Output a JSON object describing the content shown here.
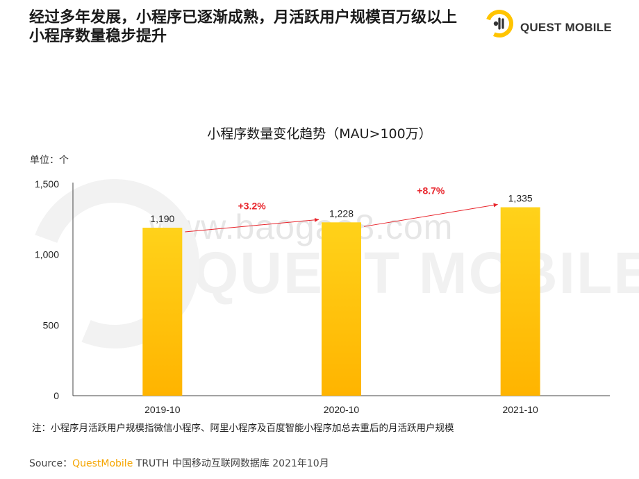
{
  "header": {
    "title_line1": "经过多年发展，小程序已逐渐成熟，月活跃用户规模百万级以上",
    "title_line2": "小程序数量稳步提升",
    "logo_text": "QUEST MOBILE"
  },
  "watermark": {
    "site": "www.baogao8.com",
    "brand": "QUEST MOBILE"
  },
  "chart_data": {
    "type": "bar",
    "title": "小程序数量变化趋势（MAU>100万）",
    "unit_label": "单位：个",
    "categories": [
      "2019-10",
      "2020-10",
      "2021-10"
    ],
    "values": [
      1190,
      1228,
      1335
    ],
    "value_labels": [
      "1,190",
      "1,228",
      "1,335"
    ],
    "ylim": [
      0,
      1500
    ],
    "y_ticks": [
      0,
      500,
      1000,
      1500
    ],
    "y_tick_labels": [
      "0",
      "500",
      "1,000",
      "1,500"
    ],
    "growth": [
      {
        "from": "2019-10",
        "to": "2020-10",
        "label": "+3.2%"
      },
      {
        "from": "2020-10",
        "to": "2021-10",
        "label": "+8.7%"
      }
    ],
    "grid": false,
    "colors": {
      "bar_top": "#ffd21a",
      "bar_bottom": "#ffb400",
      "growth": "#e8242b",
      "axis": "#444444"
    }
  },
  "footer": {
    "note": "注：小程序月活跃用户规模指微信小程序、阿里小程序及百度智能小程序加总去重后的月活跃用户规模",
    "source_prefix": "Source：",
    "source_brand": "QuestMobile",
    "source_rest": " TRUTH 中国移动互联网数据库 2021年10月"
  }
}
